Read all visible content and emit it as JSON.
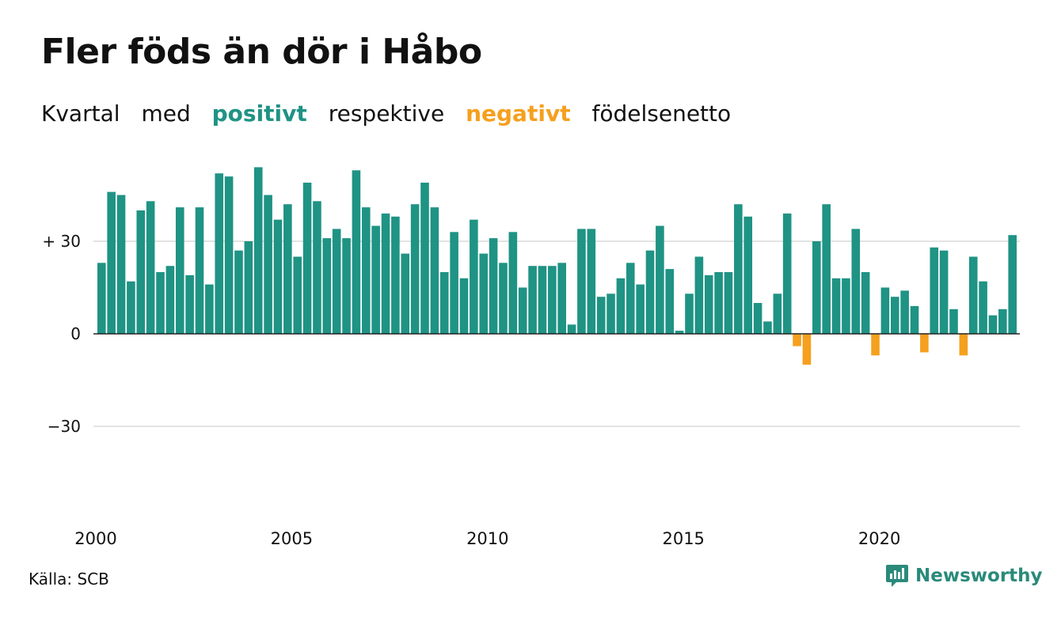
{
  "header": {
    "title": "Fler föds än dör i Håbo",
    "subtitle_parts": {
      "p1": "Kvartal",
      "p2": "med",
      "positive": "positivt",
      "p3": "respektive",
      "negative": "negativt",
      "p4": "födelsenetto"
    }
  },
  "colors": {
    "positive": "#1f9384",
    "negative": "#f5a01e",
    "grid": "#e3e3e3",
    "baseline": "#222222"
  },
  "footer": {
    "source": "Källa: SCB",
    "brand": "Newsworthy"
  },
  "chart_data": {
    "type": "bar",
    "title": "Fler föds än dör i Håbo",
    "x_start": "2000 Q1",
    "x_tick_labels": [
      "2000",
      "2005",
      "2010",
      "2015",
      "2020"
    ],
    "y_ticks": [
      30,
      0,
      -30
    ],
    "y_tick_labels": [
      "+ 30",
      "0",
      "−30"
    ],
    "ylim": [
      -55,
      55
    ],
    "grid": true,
    "values": [
      23,
      46,
      45,
      17,
      40,
      43,
      20,
      22,
      41,
      19,
      41,
      16,
      52,
      51,
      27,
      30,
      54,
      45,
      37,
      42,
      25,
      49,
      43,
      31,
      34,
      31,
      53,
      41,
      35,
      39,
      38,
      26,
      42,
      49,
      41,
      20,
      33,
      18,
      37,
      26,
      31,
      23,
      33,
      15,
      22,
      22,
      22,
      23,
      3,
      34,
      34,
      12,
      13,
      18,
      23,
      16,
      27,
      35,
      21,
      1,
      13,
      25,
      19,
      20,
      20,
      42,
      38,
      10,
      4,
      13,
      39,
      -4,
      -10,
      30,
      42,
      18,
      18,
      34,
      20,
      -7,
      15,
      12,
      14,
      9,
      -6,
      28,
      27,
      8,
      -7,
      25,
      17,
      6,
      8,
      32
    ]
  }
}
